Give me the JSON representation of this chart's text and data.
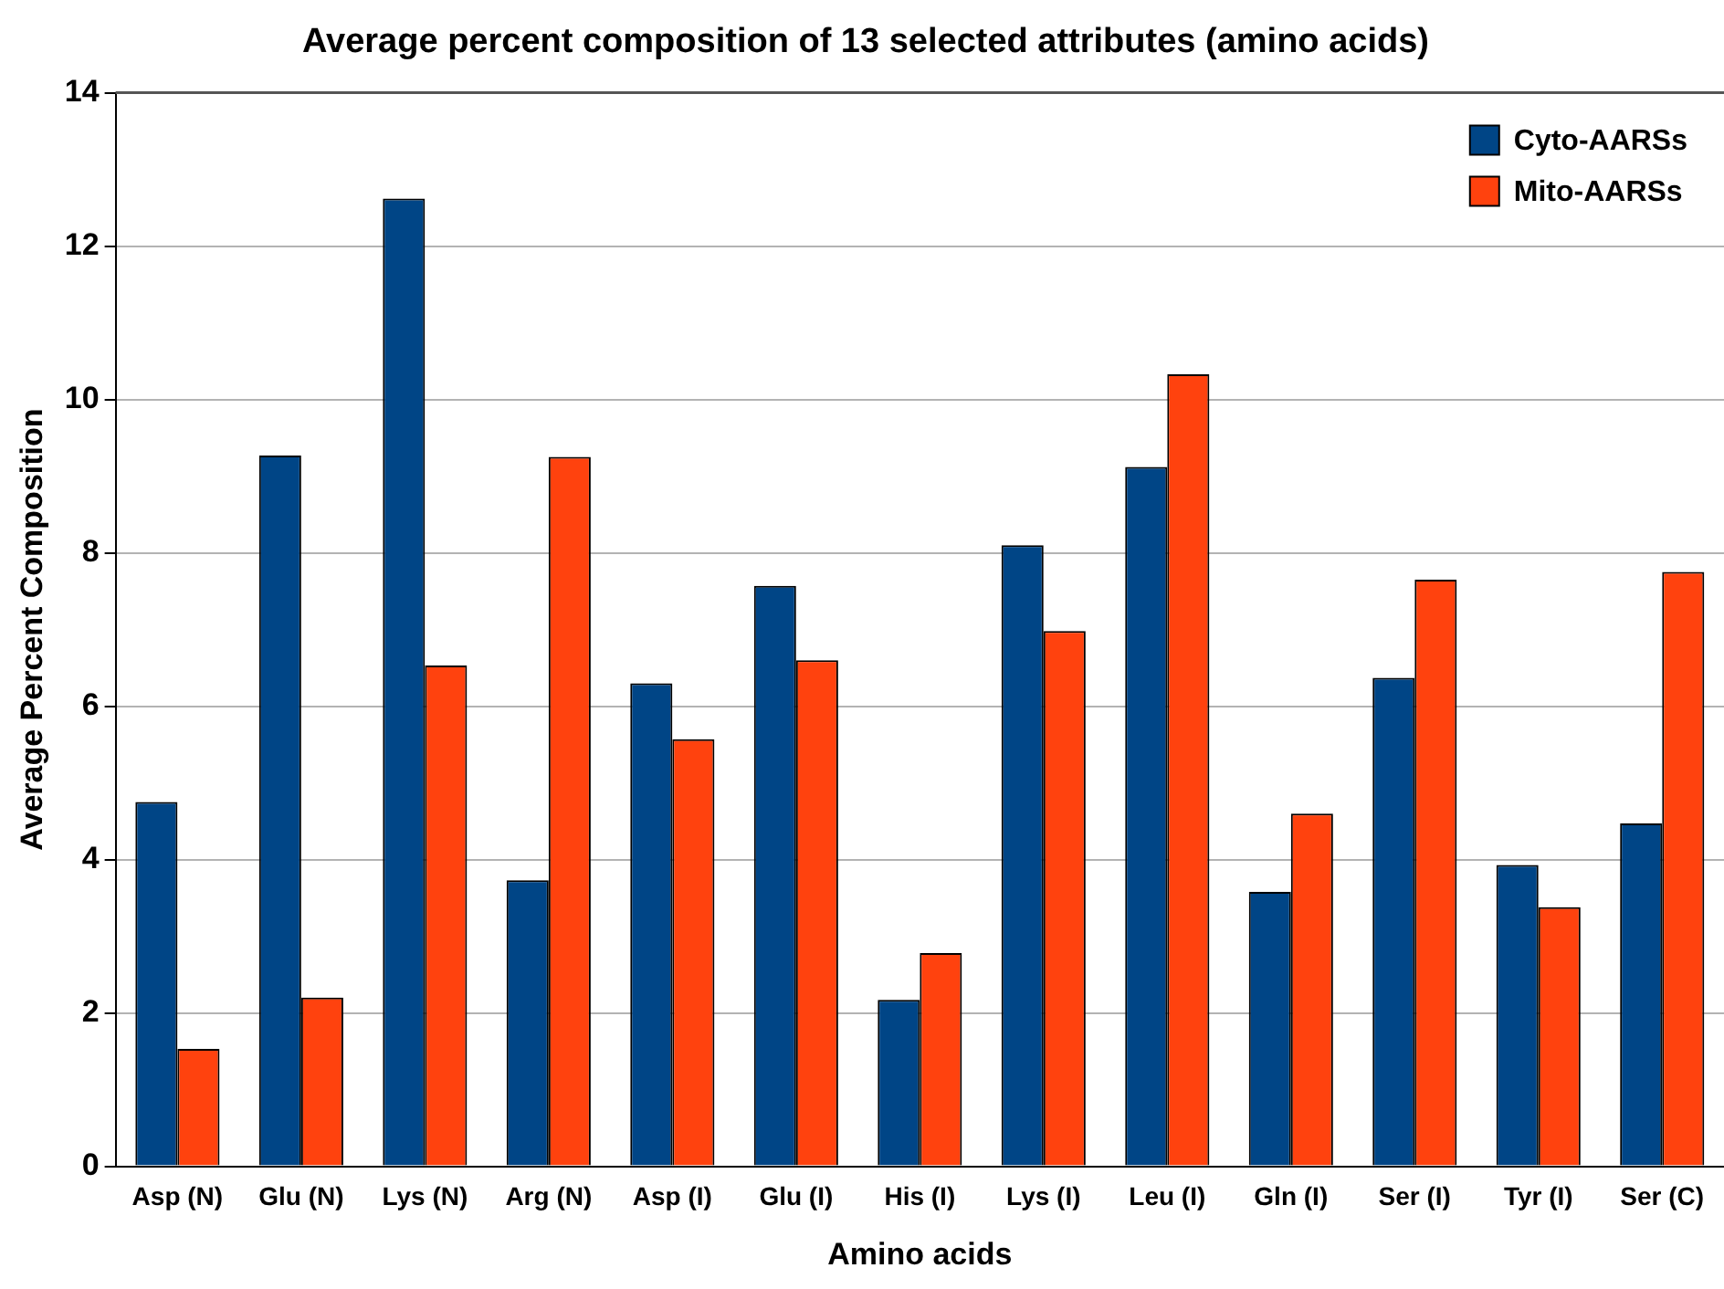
{
  "chart_data": {
    "type": "bar",
    "title": "Average percent composition of 13 selected attributes (amino acids)",
    "xlabel": "Amino acids",
    "ylabel": "Average Percent Composition",
    "categories": [
      "Asp (N)",
      "Glu (N)",
      "Lys (N)",
      "Arg (N)",
      "Asp (I)",
      "Glu (I)",
      "His (I)",
      "Lys (I)",
      "Leu (I)",
      "Gln (I)",
      "Ser (I)",
      "Tyr (I)",
      "Ser (C)"
    ],
    "series": [
      {
        "name": "Cyto-AARSs",
        "color": "#004586",
        "values": [
          4.75,
          9.27,
          12.62,
          3.73,
          6.3,
          7.57,
          2.17,
          8.1,
          9.12,
          3.58,
          6.37,
          3.93,
          4.47
        ]
      },
      {
        "name": "Mito-AARSs",
        "color": "#ff420e",
        "values": [
          1.53,
          2.2,
          6.53,
          9.25,
          5.57,
          6.6,
          2.78,
          6.98,
          10.33,
          4.6,
          7.65,
          3.38,
          7.75
        ]
      }
    ],
    "ylim": [
      0,
      14
    ],
    "yticks": [
      0,
      2,
      4,
      6,
      8,
      10,
      12,
      14
    ],
    "grid": "y",
    "legend": "top right"
  }
}
